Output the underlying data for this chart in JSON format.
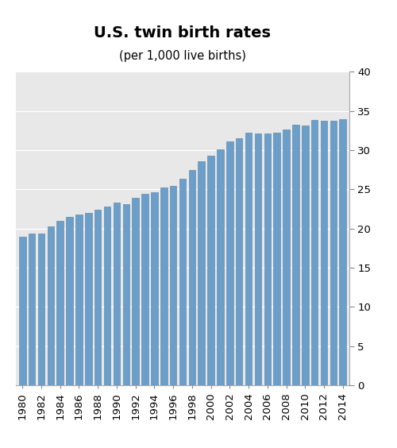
{
  "title": "U.S. twin birth rates",
  "subtitle": "(per 1,000 live births)",
  "years": [
    1980,
    1981,
    1982,
    1983,
    1984,
    1985,
    1986,
    1987,
    1988,
    1989,
    1990,
    1991,
    1992,
    1993,
    1994,
    1995,
    1996,
    1997,
    1998,
    1999,
    2000,
    2001,
    2002,
    2003,
    2004,
    2005,
    2006,
    2007,
    2008,
    2009,
    2010,
    2011,
    2012,
    2013,
    2014
  ],
  "values": [
    18.9,
    19.4,
    19.4,
    20.3,
    21.0,
    21.5,
    21.8,
    22.0,
    22.4,
    22.8,
    23.3,
    23.1,
    23.9,
    24.4,
    24.6,
    25.2,
    25.4,
    26.3,
    27.5,
    28.6,
    29.3,
    30.1,
    31.1,
    31.5,
    32.2,
    32.1,
    32.1,
    32.2,
    32.6,
    33.2,
    33.1,
    33.8,
    33.7,
    33.7,
    33.9
  ],
  "bar_color": "#6B9EC8",
  "bar_edge_color": "#5080AA",
  "background_color": "#E8E8E8",
  "fig_background": "#FFFFFF",
  "grid_color": "#FFFFFF",
  "ylim": [
    0,
    40
  ],
  "yticks": [
    0,
    5,
    10,
    15,
    20,
    25,
    30,
    35,
    40
  ],
  "title_fontsize": 14,
  "subtitle_fontsize": 10.5,
  "tick_label_fontsize": 9.5,
  "bar_width": 0.72
}
